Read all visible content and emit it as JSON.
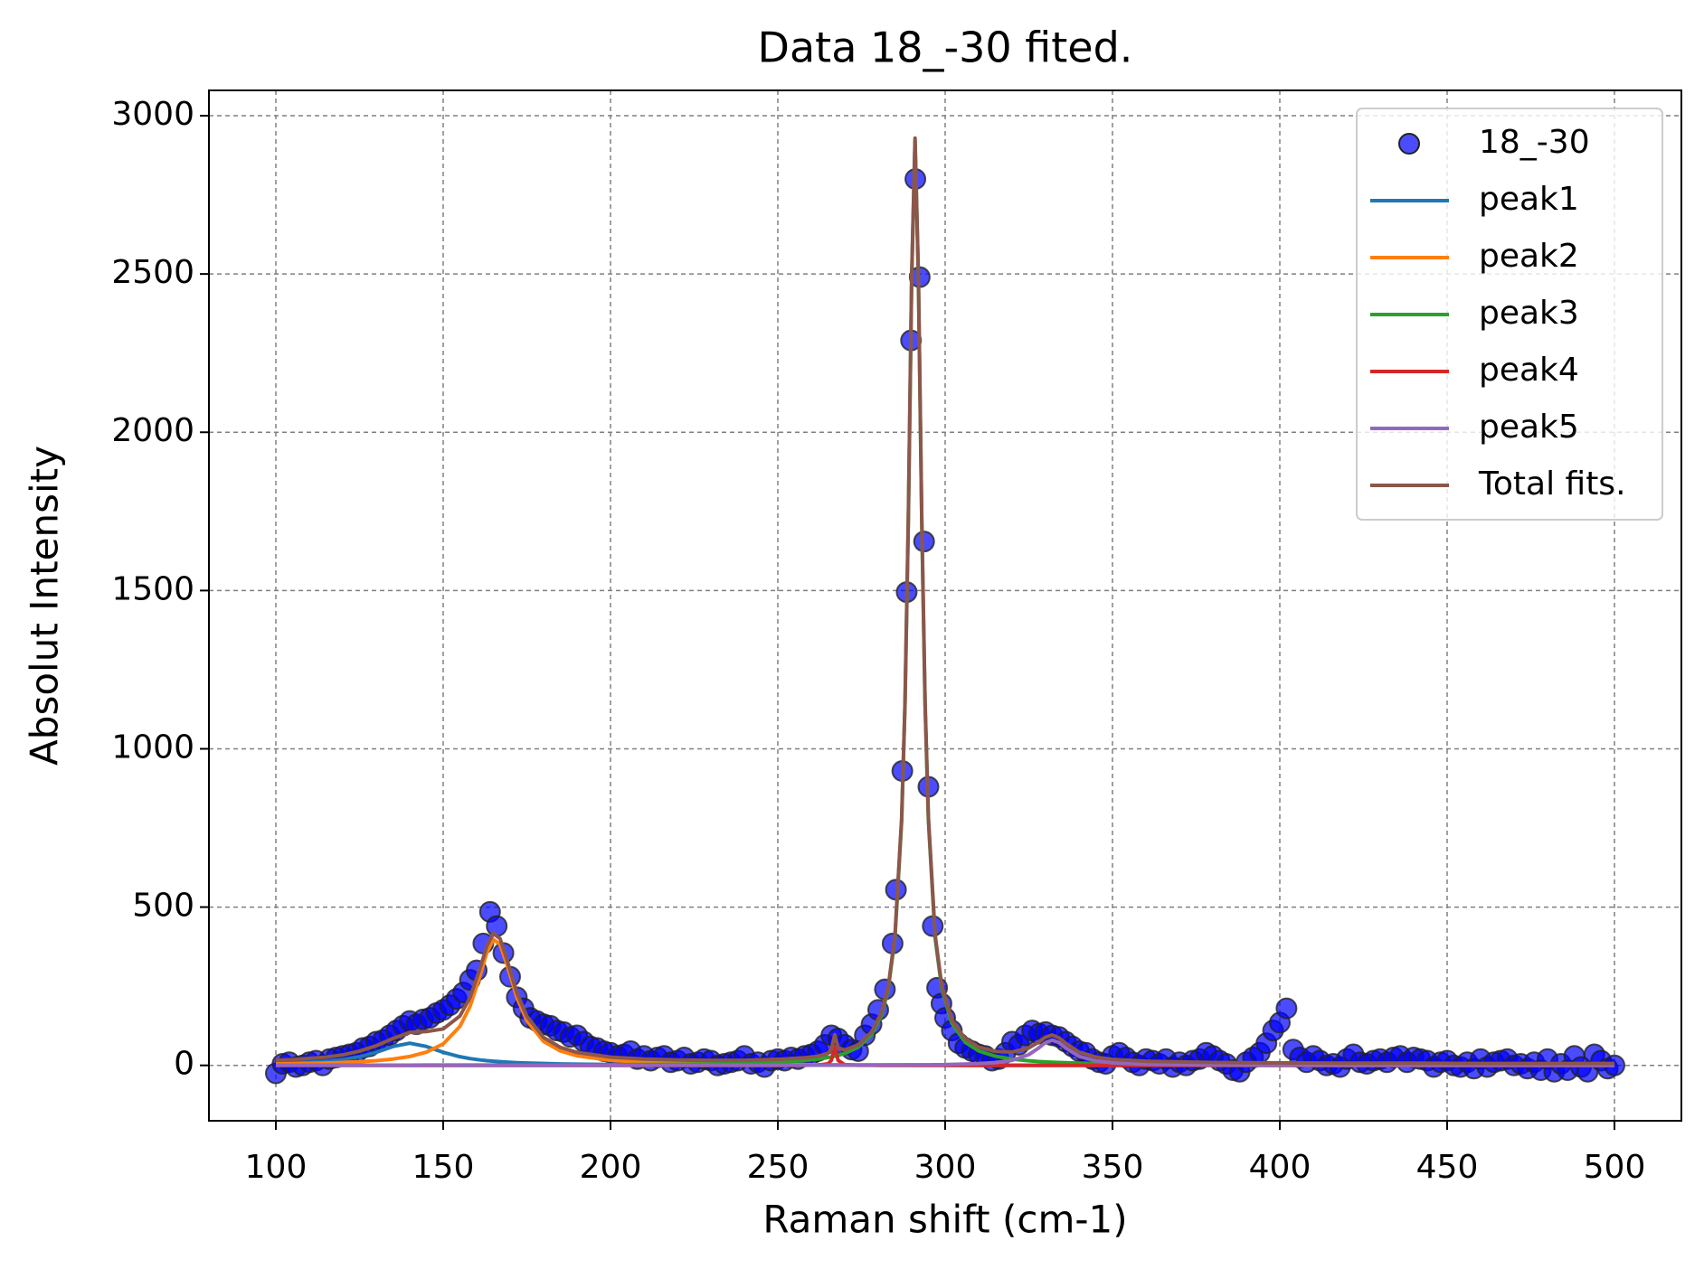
{
  "chart_data": {
    "type": "line",
    "title": "Data 18_-30 fited.",
    "x_label": "Raman shift (cm-1)",
    "y_label": "Absolut Intensity",
    "xlim": [
      80,
      520
    ],
    "ylim": [
      -175,
      3080
    ],
    "xticks": [
      100,
      150,
      200,
      250,
      300,
      350,
      400,
      450,
      500
    ],
    "yticks": [
      0,
      500,
      1000,
      1500,
      2000,
      2500,
      3000
    ],
    "grid": true,
    "legend": "upper right",
    "x": [
      100,
      105,
      110,
      115,
      120,
      125,
      130,
      135,
      140,
      145,
      150,
      155,
      158,
      161,
      163,
      165,
      167,
      169,
      172,
      175,
      180,
      185,
      190,
      200,
      210,
      220,
      230,
      240,
      250,
      258,
      262,
      265,
      266,
      267,
      268,
      270,
      274,
      278,
      281,
      283,
      285,
      287,
      288,
      289,
      290,
      291,
      292,
      293,
      294,
      295,
      297,
      299,
      302,
      306,
      310,
      315,
      320,
      325,
      328,
      330,
      332,
      334,
      336,
      340,
      345,
      350,
      360,
      380,
      400,
      420,
      440,
      460,
      480,
      500
    ],
    "series": [
      {
        "name": "18_-30",
        "type": "scatter",
        "color": "#0000ff",
        "x": [
          100,
          102,
          104,
          106,
          108,
          110,
          112,
          114,
          116,
          118,
          120,
          122,
          124,
          126,
          128,
          130,
          132,
          134,
          136,
          138,
          140,
          142,
          144,
          146,
          148,
          150,
          152,
          154,
          156,
          158,
          160,
          162,
          164,
          166,
          168,
          170,
          172,
          174,
          176,
          178,
          180,
          182,
          184,
          186,
          188,
          190,
          192,
          194,
          196,
          198,
          200,
          202,
          204,
          206,
          208,
          210,
          212,
          214,
          216,
          218,
          220,
          222,
          224,
          226,
          228,
          230,
          232,
          234,
          236,
          238,
          240,
          242,
          244,
          246,
          248,
          250,
          252,
          254,
          256,
          258,
          260,
          262,
          264,
          266,
          268,
          270,
          272,
          274,
          276,
          278,
          280,
          282,
          284.3,
          285.3,
          287.2,
          288.5,
          289.8,
          291.1,
          292.4,
          293.7,
          295.0,
          296.3,
          297.6,
          298.9,
          300,
          302,
          304,
          306,
          308,
          310,
          312,
          314,
          316,
          318,
          320,
          322,
          324,
          326,
          328,
          330,
          332,
          334,
          336,
          338,
          340,
          342,
          344,
          346,
          348,
          350,
          352,
          354,
          356,
          358,
          360,
          362,
          364,
          366,
          368,
          370,
          372,
          374,
          376,
          378,
          380,
          382,
          384,
          386,
          388,
          390,
          392,
          394,
          396,
          398,
          400,
          402,
          404,
          406,
          408,
          410,
          412,
          414,
          416,
          418,
          420,
          422,
          424,
          426,
          428,
          430,
          432,
          434,
          436,
          438,
          440,
          442,
          444,
          446,
          448,
          450,
          452,
          454,
          456,
          458,
          460,
          462,
          464,
          466,
          468,
          470,
          472,
          474,
          476,
          478,
          480,
          482,
          484,
          486,
          488,
          490,
          492,
          494,
          496,
          498,
          500
        ],
        "values": [
          -25,
          5,
          10,
          -5,
          0,
          10,
          15,
          0,
          20,
          25,
          30,
          35,
          40,
          55,
          60,
          75,
          80,
          95,
          110,
          125,
          140,
          130,
          145,
          150,
          165,
          175,
          190,
          210,
          230,
          270,
          300,
          385,
          485,
          440,
          355,
          280,
          215,
          180,
          150,
          140,
          130,
          125,
          110,
          105,
          90,
          95,
          75,
          60,
          55,
          45,
          40,
          30,
          35,
          45,
          20,
          30,
          15,
          25,
          30,
          10,
          15,
          25,
          5,
          10,
          20,
          15,
          0,
          5,
          10,
          15,
          30,
          5,
          10,
          -5,
          15,
          20,
          15,
          25,
          20,
          30,
          35,
          45,
          65,
          95,
          85,
          65,
          50,
          45,
          95,
          130,
          175,
          240,
          385,
          555,
          930,
          1495,
          2290,
          2800,
          2490,
          1655,
          880,
          440,
          245,
          195,
          150,
          110,
          70,
          55,
          45,
          35,
          30,
          15,
          20,
          40,
          75,
          65,
          95,
          110,
          100,
          105,
          95,
          90,
          75,
          60,
          45,
          40,
          20,
          10,
          5,
          30,
          40,
          25,
          10,
          0,
          20,
          15,
          5,
          20,
          -5,
          10,
          0,
          15,
          20,
          40,
          30,
          15,
          5,
          -15,
          -20,
          10,
          25,
          40,
          70,
          110,
          135,
          180,
          50,
          25,
          10,
          30,
          15,
          0,
          5,
          -5,
          20,
          35,
          10,
          5,
          15,
          20,
          10,
          25,
          30,
          10,
          25,
          20,
          15,
          -5,
          10,
          15,
          0,
          -5,
          10,
          -10,
          20,
          -5,
          10,
          15,
          20,
          0,
          5,
          -10,
          10,
          -15,
          20,
          -20,
          5,
          -15,
          30,
          -5,
          -20,
          35,
          15,
          -10,
          0
        ]
      },
      {
        "name": "peak1",
        "type": "line",
        "color": "#1f77b4",
        "values": [
          5.8,
          7.4,
          9.7,
          13.1,
          18.5,
          27.3,
          41.3,
          59.6,
          70,
          59.6,
          41.3,
          27.3,
          21.5,
          17.2,
          15.0,
          13.1,
          11.5,
          10.2,
          8.6,
          7.4,
          5.8,
          4.6,
          3.8,
          2.7,
          2.0,
          1.5,
          1.2,
          1.0,
          0.8,
          0.6,
          0.6,
          0.6,
          0.6,
          0.6,
          0.6,
          0.6,
          0.5,
          0.5,
          0.5,
          0.5,
          0.5,
          0.5,
          0.5,
          0.5,
          0.5,
          0.5,
          0.5,
          0.5,
          0.5,
          0.5,
          0.5,
          0.5,
          0.4,
          0.4,
          0.4,
          0.4,
          0.4,
          0.4,
          0.4,
          0.4,
          0.4,
          0.4,
          0.4,
          0.3,
          0.3,
          0.3,
          0.3,
          0.3,
          0.2,
          0.2,
          0.2,
          0.2,
          0.1,
          0.1
        ]
      },
      {
        "name": "peak2",
        "type": "line",
        "color": "#ff7f0e",
        "values": [
          4.5,
          5.3,
          6.3,
          7.5,
          9.2,
          11.6,
          15.0,
          20.0,
          28.0,
          41.8,
          67.8,
          123,
          186,
          283,
          355,
          398,
          382,
          320,
          215,
          141,
          75.6,
          45.7,
          30.2,
          15.8,
          9.7,
          6.5,
          4.7,
          3.5,
          2.7,
          2.3,
          2.1,
          2.0,
          2.0,
          2.0,
          2.0,
          1.8,
          1.7,
          1.6,
          1.5,
          1.5,
          1.5,
          1.5,
          1.5,
          1.5,
          1.4,
          1.4,
          1.4,
          1.4,
          1.4,
          1.4,
          1.4,
          1.4,
          1.3,
          1.2,
          1.2,
          1.1,
          1.0,
          1.0,
          1.0,
          1.0,
          0.9,
          0.9,
          0.9,
          0.8,
          0.8,
          0.7,
          0.6,
          0.5,
          0.4,
          0.3,
          0.3,
          0.2,
          0.2,
          0.2
        ]
      },
      {
        "name": "peak3",
        "type": "line",
        "color": "#2ca02c",
        "values": [
          0.5,
          0.5,
          0.5,
          0.5,
          0.6,
          0.6,
          0.6,
          0.7,
          0.7,
          0.8,
          0.8,
          0.9,
          1.0,
          1.0,
          1.0,
          1.1,
          1.1,
          1.1,
          1.2,
          1.2,
          1.4,
          1.5,
          1.6,
          2.0,
          2.6,
          3.3,
          4.5,
          6.4,
          10.0,
          15.4,
          19.9,
          24.7,
          26.7,
          28.9,
          31.5,
          37.6,
          57.0,
          96.4,
          159,
          241,
          403,
          773,
          1139,
          1724,
          2488,
          2920,
          2488,
          1724,
          1139,
          773,
          403,
          241,
          133,
          73,
          45.8,
          28.9,
          19.9,
          14.5,
          12.2,
          11.0,
          10.0,
          9.1,
          8.3,
          7.0,
          5.8,
          4.8,
          3.5,
          2.1,
          1.4,
          1.0,
          0.8,
          0.6,
          0.5,
          0.4
        ]
      },
      {
        "name": "peak4",
        "type": "line",
        "color": "#d62728",
        "values": [
          0,
          0,
          0,
          0,
          0,
          0,
          0,
          0,
          0,
          0,
          0,
          0,
          0,
          0,
          0,
          0,
          0,
          0,
          0,
          0,
          0,
          0,
          0,
          0,
          0,
          0,
          0,
          0,
          0,
          0.3,
          0.9,
          5.0,
          15.9,
          60,
          15.9,
          2.3,
          0.4,
          0.2,
          0,
          0,
          0,
          0,
          0,
          0,
          0,
          0,
          0,
          0,
          0,
          0,
          0,
          0,
          0,
          0,
          0,
          0,
          0,
          0,
          0,
          0,
          0,
          0,
          0,
          0,
          0,
          0,
          0,
          0,
          0,
          0,
          0,
          0,
          0,
          0
        ]
      },
      {
        "name": "peak5",
        "type": "line",
        "color": "#9467bd",
        "values": [
          0.1,
          0.1,
          0.1,
          0.1,
          0.1,
          0.1,
          0.1,
          0.1,
          0.1,
          0.1,
          0.1,
          0.1,
          0.1,
          0.1,
          0.1,
          0.1,
          0.1,
          0.1,
          0.1,
          0.1,
          0.1,
          0.1,
          0.1,
          0.2,
          0.2,
          0.2,
          0.2,
          0.3,
          0.4,
          0.5,
          0.6,
          0.6,
          0.6,
          0.6,
          0.7,
          0.8,
          0.8,
          1.0,
          1.1,
          1.2,
          1.3,
          1.4,
          1.4,
          1.5,
          1.6,
          1.6,
          1.7,
          1.7,
          1.8,
          1.8,
          2.0,
          2.2,
          3.1,
          4.0,
          5.6,
          8.9,
          16,
          33.9,
          55.4,
          72,
          80,
          72,
          55.4,
          28.8,
          14.1,
          8,
          3.5,
          1.2,
          0.6,
          0.4,
          0.2,
          0.2,
          0.1,
          0.1
        ]
      },
      {
        "name": "Total fits.",
        "type": "line",
        "color": "#8c564b",
        "values": [
          16,
          18,
          22,
          26,
          33,
          45,
          62,
          85,
          104,
          107,
          115,
          156,
          214,
          306,
          376,
          417,
          400,
          336,
          230,
          155,
          88,
          57,
          41,
          26,
          20,
          17,
          16,
          16,
          19,
          24,
          29,
          38,
          51,
          97,
          56,
          48,
          65,
          105,
          167,
          249,
          411,
          781,
          1147,
          1733,
          2497,
          2929,
          2497,
          1733,
          1148,
          782,
          412,
          250,
          143,
          84,
          58,
          44,
          42,
          55,
          74,
          89,
          96,
          87,
          70,
          42,
          26,
          19,
          13,
          9,
          8,
          7,
          7,
          6,
          6,
          6
        ]
      }
    ]
  }
}
